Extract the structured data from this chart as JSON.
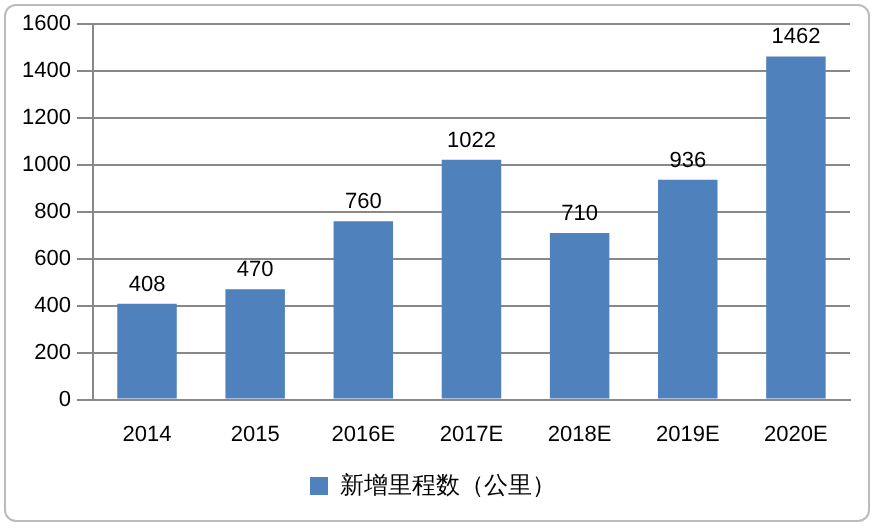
{
  "chart_data": {
    "type": "bar",
    "categories": [
      "2014",
      "2015",
      "2016E",
      "2017E",
      "2018E",
      "2019E",
      "2020E"
    ],
    "series": [
      {
        "name": "新增里程数（公里）",
        "color": "#4f81bd",
        "values": [
          408,
          470,
          760,
          1022,
          710,
          936,
          1462
        ]
      }
    ],
    "ylim": [
      0,
      1600
    ],
    "yticks": [
      0,
      200,
      400,
      600,
      800,
      1000,
      1200,
      1400,
      1600
    ],
    "grid": "y",
    "legend": "bottom",
    "data_labels": true
  }
}
